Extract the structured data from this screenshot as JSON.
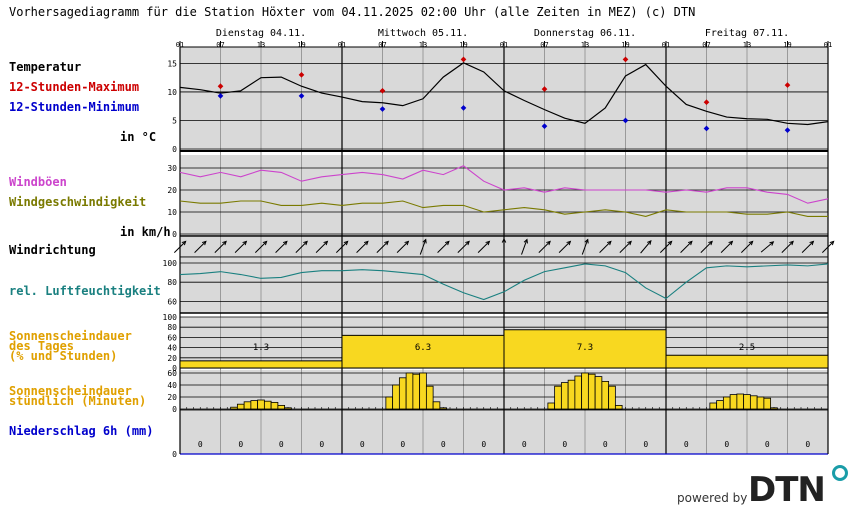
{
  "header": {
    "title": "Vorhersagediagramm für die Station Höxter vom 04.11.2025 02:00 Uhr (alle Zeiten in MEZ)   (c) DTN"
  },
  "days": [
    "Dienstag 04.11.",
    "Mittwoch 05.11.",
    "Donnerstag 06.11.",
    "Freitag 07.11."
  ],
  "hour_ticks": [
    "01",
    "07",
    "13",
    "19",
    "01",
    "07",
    "13",
    "19",
    "01",
    "07",
    "13",
    "19",
    "01",
    "07",
    "13",
    "19",
    "01"
  ],
  "labels": {
    "temp": "Temperatur",
    "tmax": "12-Stunden-Maximum",
    "tmin": "12-Stunden-Minimum",
    "temp_unit": "in °C",
    "gust": "Windböen",
    "wind": "Windgeschwindigkeit",
    "wind_unit": "in km/h",
    "dir": "Windrichtung",
    "hum": "rel. Luftfeuchtigkeit",
    "sun_day_1": "Sonnenscheindauer",
    "sun_day_2": "des Tages",
    "sun_day_3": "(% und Stunden)",
    "sun_hr_1": "Sonnenscheindauer",
    "sun_hr_2": "stündlich (Minuten)",
    "precip": "Niederschlag 6h (mm)"
  },
  "footer": {
    "powered": "powered by",
    "logo": "DTN"
  },
  "colors": {
    "panel_bg": "#d9d9d9",
    "grid": "#000000",
    "tmax": "#cc0000",
    "tmin": "#0000cc",
    "gust": "#cc44cc",
    "wind": "#7a7a00",
    "humidity": "#1a8080",
    "sun_label": "#e0a000",
    "sun_fill": "#f8d820",
    "precip_label": "#0000cc"
  },
  "chart_data": [
    {
      "type": "line",
      "name": "temperature",
      "x_unit": "hours since 04.11. 01:00",
      "ylim": [
        0,
        17
      ],
      "yticks": [
        0,
        5,
        10,
        15
      ],
      "series": [
        {
          "x": [
            0,
            3,
            6,
            9,
            12,
            15,
            18,
            21,
            24,
            27,
            30,
            33,
            36,
            39,
            42,
            45,
            48,
            51,
            54,
            57,
            60,
            63,
            66,
            69,
            72,
            75,
            78,
            81,
            84,
            87,
            90,
            93,
            96
          ],
          "y": [
            10.8,
            10.4,
            9.8,
            10.2,
            12.5,
            12.6,
            11.0,
            9.8,
            9.1,
            8.3,
            8.1,
            7.6,
            8.8,
            12.6,
            15.1,
            13.5,
            10.2,
            8.5,
            6.9,
            5.4,
            4.5,
            7.2,
            12.8,
            14.8,
            11.0,
            7.8,
            6.6,
            5.6,
            5.3,
            5.2,
            4.5,
            4.3,
            4.8
          ]
        }
      ],
      "max_12h": [
        {
          "x": 6,
          "y": 11.0
        },
        {
          "x": 18,
          "y": 13.0
        },
        {
          "x": 30,
          "y": 10.2
        },
        {
          "x": 42,
          "y": 15.7
        },
        {
          "x": 54,
          "y": 10.5
        },
        {
          "x": 66,
          "y": 15.7
        },
        {
          "x": 78,
          "y": 8.2
        },
        {
          "x": 90,
          "y": 11.2
        }
      ],
      "min_12h": [
        {
          "x": 6,
          "y": 9.3
        },
        {
          "x": 18,
          "y": 9.3
        },
        {
          "x": 30,
          "y": 7.0
        },
        {
          "x": 42,
          "y": 7.2
        },
        {
          "x": 54,
          "y": 4.0
        },
        {
          "x": 66,
          "y": 5.0
        },
        {
          "x": 78,
          "y": 3.6
        },
        {
          "x": 90,
          "y": 3.3
        }
      ]
    },
    {
      "type": "line",
      "name": "wind",
      "ylim": [
        0,
        35
      ],
      "yticks": [
        0,
        10,
        20,
        30
      ],
      "series": [
        {
          "name": "Windböen",
          "x": [
            0,
            3,
            6,
            9,
            12,
            15,
            18,
            21,
            24,
            27,
            30,
            33,
            36,
            39,
            42,
            45,
            48,
            51,
            54,
            57,
            60,
            63,
            66,
            69,
            72,
            75,
            78,
            81,
            84,
            87,
            90,
            93,
            96
          ],
          "y": [
            28,
            26,
            28,
            26,
            29,
            28,
            24,
            26,
            27,
            28,
            27,
            25,
            29,
            27,
            31,
            24,
            20,
            21,
            19,
            21,
            20,
            20,
            20,
            20,
            19,
            20,
            19,
            21,
            21,
            19,
            18,
            14,
            16
          ]
        },
        {
          "name": "Windgeschwindigkeit",
          "x": [
            0,
            3,
            6,
            9,
            12,
            15,
            18,
            21,
            24,
            27,
            30,
            33,
            36,
            39,
            42,
            45,
            48,
            51,
            54,
            57,
            60,
            63,
            66,
            69,
            72,
            75,
            78,
            81,
            84,
            87,
            90,
            93,
            96
          ],
          "y": [
            15,
            14,
            14,
            15,
            15,
            13,
            13,
            14,
            13,
            14,
            14,
            15,
            12,
            13,
            13,
            10,
            11,
            12,
            11,
            9,
            10,
            11,
            10,
            8,
            11,
            10,
            10,
            10,
            9,
            9,
            10,
            8,
            8
          ]
        }
      ]
    },
    {
      "type": "line",
      "name": "humidity",
      "ylim": [
        50,
        100
      ],
      "yticks": [
        60,
        80,
        100
      ],
      "series": [
        {
          "x": [
            0,
            3,
            6,
            9,
            12,
            15,
            18,
            21,
            24,
            27,
            30,
            33,
            36,
            39,
            42,
            45,
            48,
            51,
            54,
            57,
            60,
            63,
            66,
            69,
            72,
            75,
            78,
            81,
            84,
            87,
            90,
            93,
            96
          ],
          "y": [
            88,
            89,
            91,
            88,
            84,
            85,
            90,
            92,
            92,
            93,
            92,
            90,
            88,
            78,
            69,
            62,
            70,
            82,
            91,
            95,
            99,
            97,
            90,
            74,
            63,
            80,
            95,
            97,
            96,
            97,
            98,
            97,
            99
          ]
        }
      ]
    },
    {
      "type": "bar",
      "name": "daily_sunshine",
      "ylim": [
        0,
        100
      ],
      "yticks": [
        0,
        20,
        40,
        60,
        80,
        100
      ],
      "categories": [
        "04.11.",
        "05.11.",
        "06.11.",
        "07.11."
      ],
      "values_percent": [
        14,
        64,
        75,
        25
      ],
      "hours_labels": [
        "1.3",
        "6.3",
        "7.3",
        "2.5"
      ]
    },
    {
      "type": "bar",
      "name": "hourly_sunshine_minutes",
      "ylim": [
        0,
        60
      ],
      "yticks": [
        0,
        20,
        40,
        60
      ],
      "x": [
        8,
        9,
        10,
        11,
        12,
        13,
        14,
        15,
        16,
        31,
        32,
        33,
        34,
        35,
        36,
        37,
        38,
        39,
        55,
        56,
        57,
        58,
        59,
        60,
        61,
        62,
        63,
        64,
        65,
        79,
        80,
        81,
        82,
        83,
        84,
        85,
        86,
        87,
        88
      ],
      "values": [
        3,
        8,
        12,
        14,
        15,
        13,
        11,
        6,
        2,
        20,
        40,
        52,
        60,
        58,
        60,
        38,
        12,
        2,
        10,
        38,
        44,
        48,
        55,
        60,
        58,
        54,
        46,
        38,
        6,
        10,
        14,
        20,
        24,
        25,
        24,
        22,
        20,
        18,
        2
      ]
    },
    {
      "type": "table",
      "name": "precipitation_6h",
      "ylim": [
        0,
        6
      ],
      "x": [
        3,
        9,
        15,
        21,
        27,
        33,
        39,
        45,
        51,
        57,
        63,
        69,
        75,
        81,
        87,
        93
      ],
      "values": [
        "0",
        "0",
        "0",
        "0",
        "0",
        "0",
        "0",
        "0",
        "0",
        "0",
        "0",
        "0",
        "0",
        "0",
        "0",
        "0"
      ]
    },
    {
      "type": "table",
      "name": "wind_direction",
      "x": [
        0,
        3,
        6,
        9,
        12,
        15,
        18,
        21,
        24,
        27,
        30,
        33,
        36,
        39,
        42,
        45,
        48,
        51,
        54,
        57,
        60,
        63,
        66,
        69,
        72,
        75,
        78,
        81,
        84,
        87,
        90,
        93,
        96
      ],
      "bearing_deg": [
        225,
        225,
        225,
        225,
        225,
        225,
        225,
        225,
        225,
        225,
        225,
        225,
        200,
        225,
        225,
        225,
        180,
        200,
        225,
        225,
        200,
        225,
        225,
        220,
        225,
        225,
        225,
        225,
        225,
        230,
        225,
        225,
        225
      ]
    }
  ]
}
